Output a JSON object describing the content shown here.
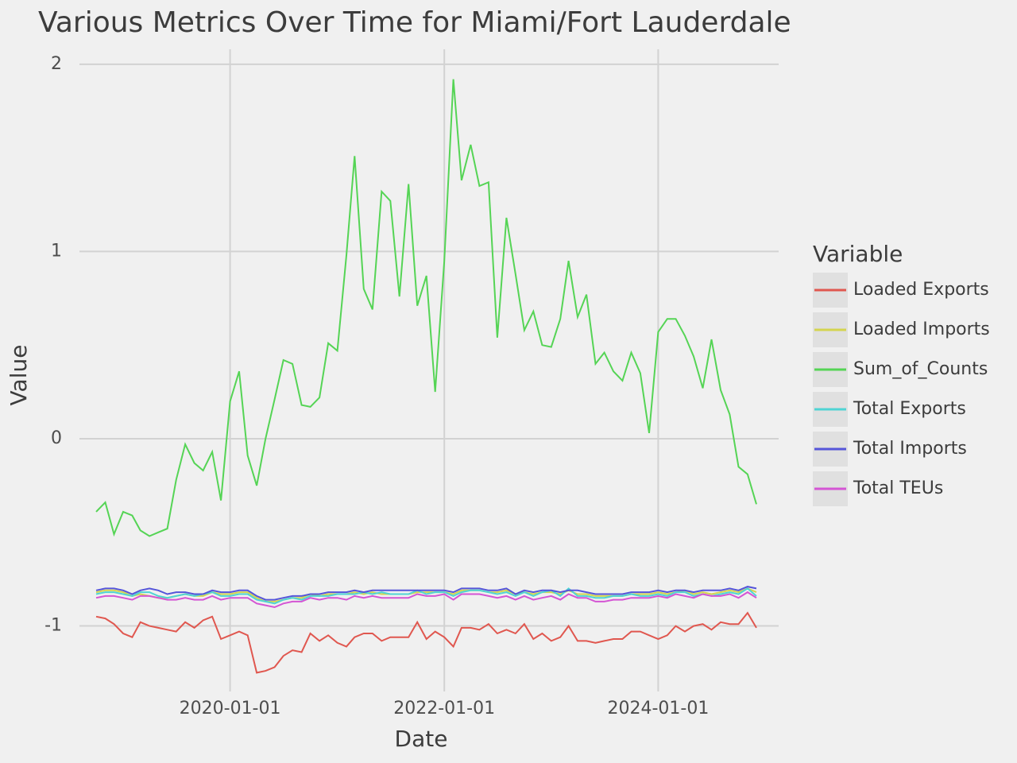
{
  "chart_data": {
    "type": "line",
    "title": "Various Metrics Over Time for Miami/Fort Lauderdale",
    "x_label": "Date",
    "y_label": "Value",
    "legend_title": "Variable",
    "legend": "right",
    "grid": true,
    "x": [
      "2018-10-01",
      "2018-11-01",
      "2018-12-01",
      "2019-01-01",
      "2019-02-01",
      "2019-03-01",
      "2019-04-01",
      "2019-05-01",
      "2019-06-01",
      "2019-07-01",
      "2019-08-01",
      "2019-09-01",
      "2019-10-01",
      "2019-11-01",
      "2019-12-01",
      "2020-01-01",
      "2020-02-01",
      "2020-03-01",
      "2020-04-01",
      "2020-05-01",
      "2020-06-01",
      "2020-07-01",
      "2020-08-01",
      "2020-09-01",
      "2020-10-01",
      "2020-11-01",
      "2020-12-01",
      "2021-01-01",
      "2021-02-01",
      "2021-03-01",
      "2021-04-01",
      "2021-05-01",
      "2021-06-01",
      "2021-07-01",
      "2021-08-01",
      "2021-09-01",
      "2021-10-01",
      "2021-11-01",
      "2021-12-01",
      "2022-01-01",
      "2022-02-01",
      "2022-03-01",
      "2022-04-01",
      "2022-05-01",
      "2022-06-01",
      "2022-07-01",
      "2022-08-01",
      "2022-09-01",
      "2022-10-01",
      "2022-11-01",
      "2022-12-01",
      "2023-01-01",
      "2023-02-01",
      "2023-03-01",
      "2023-04-01",
      "2023-05-01",
      "2023-06-01",
      "2023-07-01",
      "2023-08-01",
      "2023-09-01",
      "2023-10-01",
      "2023-11-01",
      "2023-12-01",
      "2024-01-01",
      "2024-02-01",
      "2024-03-01",
      "2024-04-01",
      "2024-05-01",
      "2024-06-01",
      "2024-07-01",
      "2024-08-01",
      "2024-09-01",
      "2024-10-01",
      "2024-11-01",
      "2024-12-01"
    ],
    "xlim": [
      "2018-08-05",
      "2025-02-15"
    ],
    "xticks": [
      "2020-01-01",
      "2022-01-01",
      "2024-01-01"
    ],
    "ylim": [
      -1.35,
      2.08
    ],
    "yticks": [
      -1,
      0,
      1,
      2
    ],
    "series": [
      {
        "name": "Loaded Exports",
        "color": "#e0574f",
        "values": [
          -0.95,
          -0.96,
          -0.99,
          -1.04,
          -1.06,
          -0.98,
          -1.0,
          -1.01,
          -1.02,
          -1.03,
          -0.98,
          -1.01,
          -0.97,
          -0.95,
          -1.07,
          -1.05,
          -1.03,
          -1.05,
          -1.25,
          -1.24,
          -1.22,
          -1.16,
          -1.13,
          -1.14,
          -1.04,
          -1.08,
          -1.05,
          -1.09,
          -1.11,
          -1.06,
          -1.04,
          -1.04,
          -1.08,
          -1.06,
          -1.06,
          -1.06,
          -0.98,
          -1.07,
          -1.03,
          -1.06,
          -1.11,
          -1.01,
          -1.01,
          -1.02,
          -0.99,
          -1.04,
          -1.02,
          -1.04,
          -0.99,
          -1.07,
          -1.04,
          -1.08,
          -1.06,
          -1.0,
          -1.08,
          -1.08,
          -1.09,
          -1.08,
          -1.07,
          -1.07,
          -1.03,
          -1.03,
          -1.05,
          -1.07,
          -1.05,
          -1.0,
          -1.03,
          -1.0,
          -0.99,
          -1.02,
          -0.98,
          -0.99,
          -0.99,
          -0.93,
          -1.01
        ]
      },
      {
        "name": "Loaded Imports",
        "color": "#d4d44f",
        "values": [
          -0.82,
          -0.81,
          -0.81,
          -0.82,
          -0.84,
          -0.83,
          -0.84,
          -0.85,
          -0.85,
          -0.84,
          -0.83,
          -0.84,
          -0.84,
          -0.82,
          -0.83,
          -0.83,
          -0.82,
          -0.82,
          -0.85,
          -0.87,
          -0.87,
          -0.86,
          -0.85,
          -0.85,
          -0.83,
          -0.84,
          -0.83,
          -0.83,
          -0.83,
          -0.82,
          -0.83,
          -0.82,
          -0.83,
          -0.83,
          -0.83,
          -0.83,
          -0.82,
          -0.82,
          -0.82,
          -0.82,
          -0.83,
          -0.81,
          -0.81,
          -0.81,
          -0.82,
          -0.82,
          -0.81,
          -0.83,
          -0.82,
          -0.83,
          -0.82,
          -0.82,
          -0.83,
          -0.81,
          -0.83,
          -0.83,
          -0.84,
          -0.84,
          -0.84,
          -0.84,
          -0.83,
          -0.83,
          -0.83,
          -0.82,
          -0.83,
          -0.82,
          -0.81,
          -0.83,
          -0.82,
          -0.83,
          -0.82,
          -0.81,
          -0.82,
          -0.8,
          -0.82
        ]
      },
      {
        "name": "Sum_of_Counts",
        "color": "#55d455",
        "values": [
          -0.39,
          -0.34,
          -0.51,
          -0.39,
          -0.41,
          -0.49,
          -0.52,
          -0.5,
          -0.48,
          -0.22,
          -0.03,
          -0.13,
          -0.17,
          -0.07,
          -0.33,
          0.2,
          0.36,
          -0.09,
          -0.25,
          0.0,
          0.21,
          0.42,
          0.4,
          0.18,
          0.17,
          0.22,
          0.51,
          0.47,
          0.98,
          1.51,
          0.8,
          0.69,
          1.32,
          1.27,
          0.76,
          1.36,
          0.71,
          0.87,
          0.25,
          0.95,
          1.92,
          1.38,
          1.57,
          1.35,
          1.37,
          0.54,
          1.18,
          0.88,
          0.58,
          0.68,
          0.5,
          0.49,
          0.64,
          0.95,
          0.65,
          0.77,
          0.4,
          0.46,
          0.36,
          0.31,
          0.46,
          0.35,
          0.03,
          0.57,
          0.64,
          0.64,
          0.55,
          0.44,
          0.27,
          0.53,
          0.26,
          0.13,
          -0.15,
          -0.19,
          -0.35
        ]
      },
      {
        "name": "Total Exports",
        "color": "#4fd4d4",
        "values": [
          -0.83,
          -0.82,
          -0.82,
          -0.83,
          -0.84,
          -0.82,
          -0.82,
          -0.84,
          -0.85,
          -0.84,
          -0.83,
          -0.84,
          -0.83,
          -0.82,
          -0.84,
          -0.84,
          -0.83,
          -0.83,
          -0.86,
          -0.87,
          -0.88,
          -0.86,
          -0.85,
          -0.86,
          -0.84,
          -0.84,
          -0.84,
          -0.83,
          -0.83,
          -0.83,
          -0.82,
          -0.83,
          -0.82,
          -0.83,
          -0.83,
          -0.83,
          -0.81,
          -0.83,
          -0.82,
          -0.82,
          -0.84,
          -0.82,
          -0.81,
          -0.81,
          -0.82,
          -0.83,
          -0.82,
          -0.84,
          -0.82,
          -0.84,
          -0.82,
          -0.81,
          -0.84,
          -0.8,
          -0.84,
          -0.84,
          -0.85,
          -0.85,
          -0.84,
          -0.84,
          -0.83,
          -0.84,
          -0.84,
          -0.83,
          -0.84,
          -0.82,
          -0.82,
          -0.84,
          -0.83,
          -0.84,
          -0.83,
          -0.82,
          -0.83,
          -0.8,
          -0.84
        ]
      },
      {
        "name": "Total Imports",
        "color": "#5555d9",
        "values": [
          -0.81,
          -0.8,
          -0.8,
          -0.81,
          -0.83,
          -0.81,
          -0.8,
          -0.81,
          -0.83,
          -0.82,
          -0.82,
          -0.83,
          -0.83,
          -0.81,
          -0.82,
          -0.82,
          -0.81,
          -0.81,
          -0.84,
          -0.86,
          -0.86,
          -0.85,
          -0.84,
          -0.84,
          -0.83,
          -0.83,
          -0.82,
          -0.82,
          -0.82,
          -0.81,
          -0.82,
          -0.81,
          -0.81,
          -0.81,
          -0.81,
          -0.81,
          -0.81,
          -0.81,
          -0.81,
          -0.81,
          -0.82,
          -0.8,
          -0.8,
          -0.8,
          -0.81,
          -0.81,
          -0.8,
          -0.83,
          -0.81,
          -0.82,
          -0.81,
          -0.81,
          -0.82,
          -0.81,
          -0.81,
          -0.82,
          -0.83,
          -0.83,
          -0.83,
          -0.83,
          -0.82,
          -0.82,
          -0.82,
          -0.81,
          -0.82,
          -0.81,
          -0.81,
          -0.82,
          -0.81,
          -0.81,
          -0.81,
          -0.8,
          -0.81,
          -0.79,
          -0.8
        ]
      },
      {
        "name": "Total TEUs",
        "color": "#d455d4",
        "values": [
          -0.85,
          -0.84,
          -0.84,
          -0.85,
          -0.86,
          -0.84,
          -0.84,
          -0.85,
          -0.86,
          -0.86,
          -0.85,
          -0.86,
          -0.86,
          -0.84,
          -0.86,
          -0.85,
          -0.85,
          -0.85,
          -0.88,
          -0.89,
          -0.9,
          -0.88,
          -0.87,
          -0.87,
          -0.85,
          -0.86,
          -0.85,
          -0.85,
          -0.86,
          -0.84,
          -0.85,
          -0.84,
          -0.85,
          -0.85,
          -0.85,
          -0.85,
          -0.83,
          -0.84,
          -0.84,
          -0.83,
          -0.86,
          -0.83,
          -0.83,
          -0.83,
          -0.84,
          -0.85,
          -0.84,
          -0.86,
          -0.84,
          -0.86,
          -0.85,
          -0.84,
          -0.86,
          -0.83,
          -0.85,
          -0.85,
          -0.87,
          -0.87,
          -0.86,
          -0.86,
          -0.85,
          -0.85,
          -0.85,
          -0.84,
          -0.85,
          -0.83,
          -0.84,
          -0.85,
          -0.83,
          -0.84,
          -0.84,
          -0.83,
          -0.85,
          -0.82,
          -0.85
        ]
      }
    ]
  }
}
